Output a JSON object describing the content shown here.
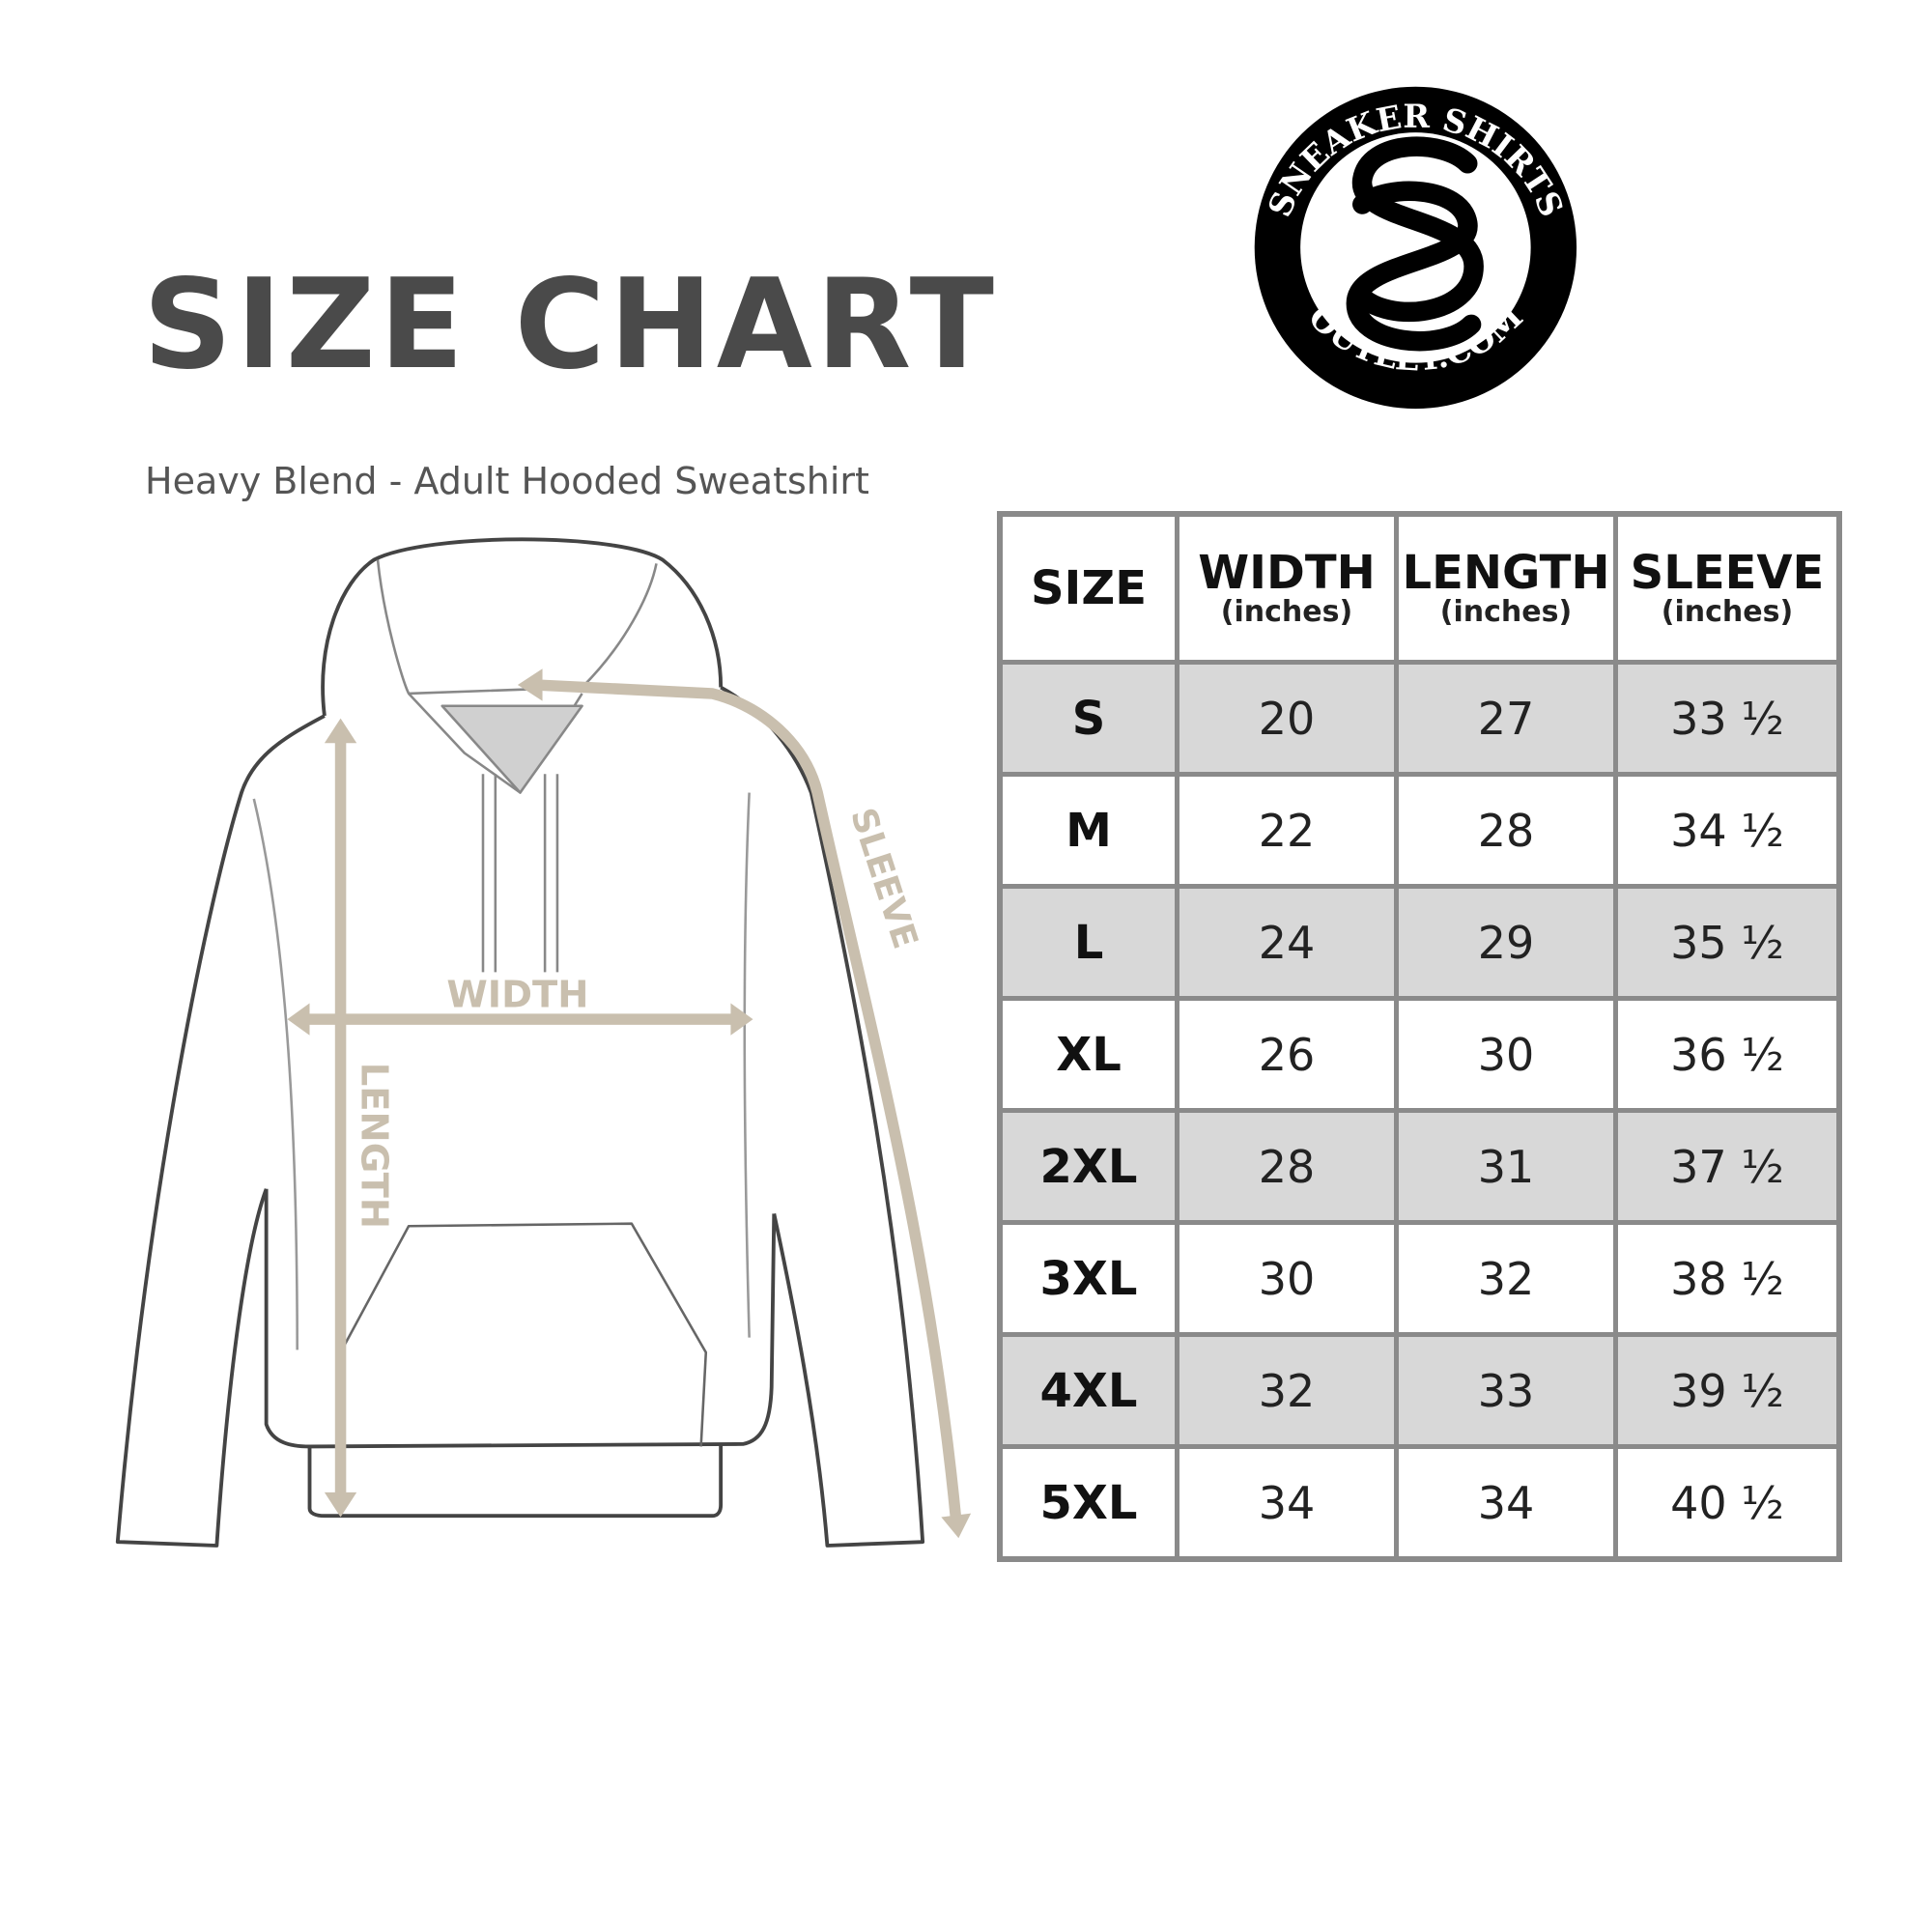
{
  "title": "SIZE CHART",
  "subtitle": "Heavy Blend - Adult Hooded Sweatshirt",
  "logo": {
    "top_text": "SNEAKER SHIRTS",
    "bottom_text": "OUTLET.COM",
    "monogram": "SS"
  },
  "diagram": {
    "width_label": "WIDTH",
    "length_label": "LENGTH",
    "sleeve_label": "SLEEVE",
    "arrow_color": "#c9bfae"
  },
  "table": {
    "headers": [
      {
        "label": "SIZE",
        "unit": ""
      },
      {
        "label": "WIDTH",
        "unit": "(inches)"
      },
      {
        "label": "LENGTH",
        "unit": "(inches)"
      },
      {
        "label": "SLEEVE",
        "unit": "(inches)"
      }
    ],
    "rows": [
      [
        "S",
        "20",
        "27",
        "33 ½"
      ],
      [
        "M",
        "22",
        "28",
        "34 ½"
      ],
      [
        "L",
        "24",
        "29",
        "35 ½"
      ],
      [
        "XL",
        "26",
        "30",
        "36 ½"
      ],
      [
        "2XL",
        "28",
        "31",
        "37 ½"
      ],
      [
        "3XL",
        "30",
        "32",
        "38 ½"
      ],
      [
        "4XL",
        "32",
        "33",
        "39 ½"
      ],
      [
        "5XL",
        "34",
        "34",
        "40 ½"
      ]
    ],
    "shade_color": "#d8d8d8"
  }
}
